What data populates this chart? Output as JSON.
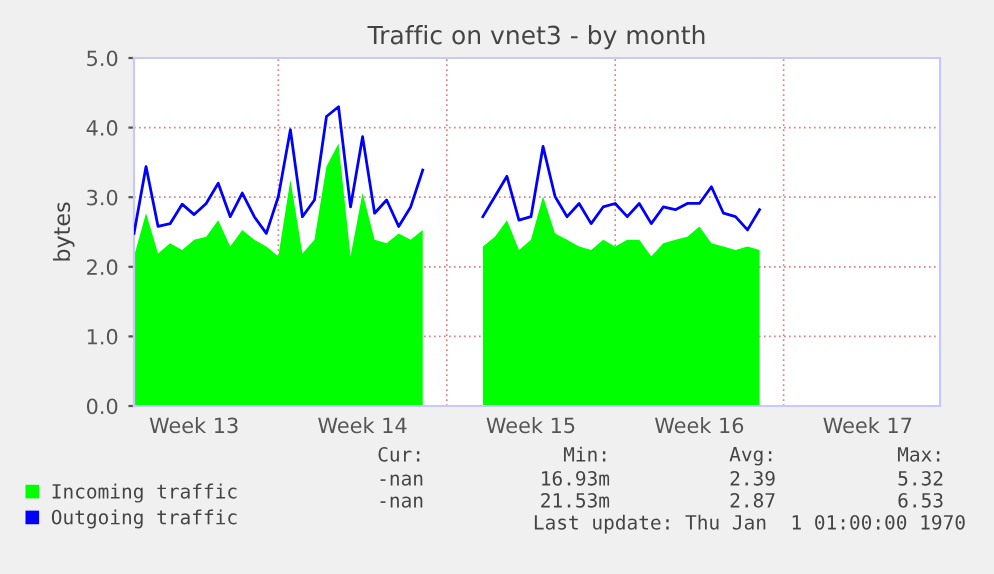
{
  "chart_data": {
    "type": "line",
    "title": "Traffic on vnet3 - by month",
    "ylabel": "bytes",
    "categories": [
      null,
      null,
      null,
      null,
      null,
      "Week 13",
      null,
      null,
      null,
      null,
      null,
      null,
      null,
      null,
      null,
      null,
      null,
      null,
      null,
      "Week 14",
      null,
      null,
      null,
      null,
      null,
      null,
      null,
      null,
      null,
      null,
      null,
      null,
      null,
      "Week 15",
      null,
      null,
      null,
      null,
      null,
      null,
      null,
      null,
      null,
      null,
      null,
      null,
      null,
      "Week 16",
      null,
      null,
      null,
      null,
      null,
      null,
      null,
      null,
      null,
      null,
      null,
      null,
      null,
      "Week 17",
      null,
      null,
      null,
      null,
      null,
      null
    ],
    "ylim": [
      0,
      5
    ],
    "yticks": [
      {
        "value": 0,
        "label": "0.0"
      },
      {
        "value": 1,
        "label": "1.0"
      },
      {
        "value": 2,
        "label": "2.0"
      },
      {
        "value": 3,
        "label": "3.0"
      },
      {
        "value": 4,
        "label": "4.0"
      },
      {
        "value": 5,
        "label": "5.0"
      }
    ],
    "grid": true,
    "legend": "bottom",
    "series": [
      {
        "name": "Incoming traffic",
        "type": "area",
        "color": "#00ff00",
        "values": [
          2.15,
          2.77,
          2.19,
          2.34,
          2.24,
          2.39,
          2.43,
          2.67,
          2.29,
          2.53,
          2.39,
          2.29,
          2.15,
          3.25,
          2.19,
          2.39,
          3.44,
          3.77,
          2.15,
          3.06,
          2.39,
          2.34,
          2.48,
          2.39,
          2.53,
          null,
          null,
          null,
          null,
          2.29,
          2.43,
          2.67,
          2.24,
          2.39,
          3.01,
          2.48,
          2.39,
          2.29,
          2.24,
          2.39,
          2.29,
          2.39,
          2.39,
          2.15,
          2.34,
          2.39,
          2.43,
          2.58,
          2.34,
          2.29,
          2.24,
          2.29,
          2.24,
          null,
          null,
          null,
          null,
          null,
          null,
          null,
          null,
          null,
          null,
          null,
          null,
          null,
          null,
          null
        ]
      },
      {
        "name": "Outgoing traffic",
        "color": "#0000ff",
        "values": [
          2.48,
          3.44,
          2.58,
          2.62,
          2.9,
          2.75,
          2.91,
          3.2,
          2.72,
          3.06,
          2.72,
          2.48,
          3.01,
          3.97,
          2.72,
          2.96,
          4.16,
          4.3,
          2.86,
          3.87,
          2.77,
          2.96,
          2.58,
          2.86,
          3.39,
          null,
          null,
          null,
          null,
          2.72,
          3.01,
          3.3,
          2.67,
          2.72,
          3.73,
          3.01,
          2.72,
          2.91,
          2.62,
          2.86,
          2.91,
          2.72,
          2.91,
          2.62,
          2.86,
          2.82,
          2.91,
          2.91,
          3.15,
          2.77,
          2.72,
          2.53,
          2.82,
          null,
          null,
          null,
          null,
          null,
          null,
          null,
          null,
          null,
          null,
          null,
          null,
          null,
          null,
          null
        ]
      }
    ],
    "annotations": [
      "Cur:",
      "Min:",
      "Avg:",
      "Max:",
      "-nan",
      "16.93m",
      "2.39",
      "5.32",
      "-nan",
      "21.53m",
      "2.87",
      "6.53",
      "Last update: Thu Jan  1 01:00:00 1970"
    ]
  }
}
